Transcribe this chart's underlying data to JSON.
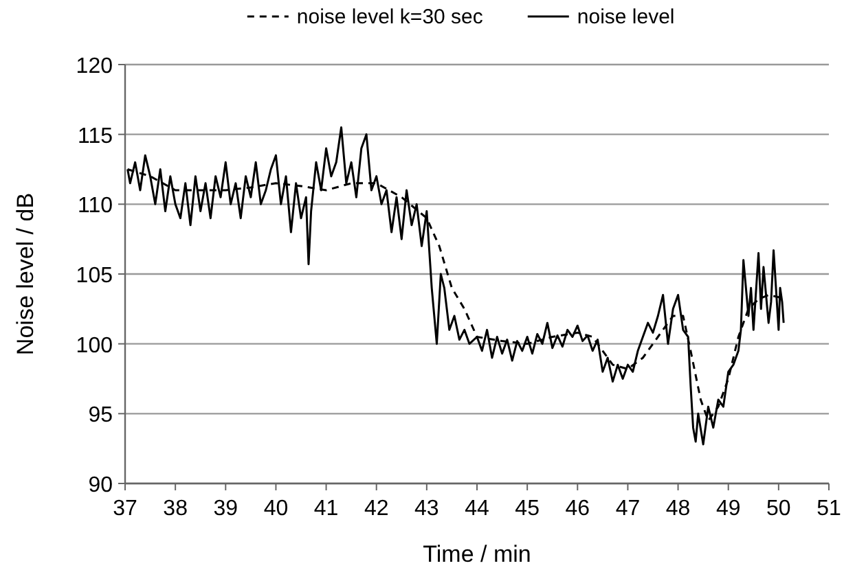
{
  "chart_data": {
    "type": "line",
    "xlabel": "Time / min",
    "ylabel": "Noise level / dB",
    "xlim": [
      37,
      51
    ],
    "xticks": [
      37,
      38,
      39,
      40,
      41,
      42,
      43,
      44,
      45,
      46,
      47,
      48,
      49,
      50,
      51
    ],
    "ylim": [
      90,
      120
    ],
    "yticks": [
      90,
      95,
      100,
      105,
      110,
      115,
      120
    ],
    "grid": "y",
    "legend": "top",
    "series": [
      {
        "name": "noise level k=30 sec",
        "color": "#000000",
        "line_style": "dashed",
        "x": [
          37.05,
          37.5,
          38,
          38.5,
          39,
          39.5,
          40,
          40.5,
          41,
          41.5,
          42,
          42.5,
          43,
          43.25,
          43.5,
          43.75,
          44,
          44.5,
          45,
          45.5,
          46,
          46.3,
          46.7,
          47,
          47.3,
          47.6,
          47.9,
          48.1,
          48.25,
          48.45,
          48.6,
          48.8,
          49,
          49.2,
          49.4,
          49.6,
          49.8,
          50.05
        ],
        "values": [
          112.5,
          112,
          111,
          111,
          111,
          111.2,
          111.5,
          111.3,
          111,
          111.5,
          111.5,
          110.5,
          109,
          107,
          104,
          102.5,
          100.5,
          100.2,
          100,
          100.5,
          100.8,
          100.5,
          98.5,
          98.2,
          99,
          100.5,
          102,
          102,
          99.5,
          96,
          94.5,
          95.5,
          97.5,
          100.5,
          102.5,
          103.2,
          103.5,
          103.3
        ]
      },
      {
        "name": "noise level",
        "color": "#000000",
        "line_style": "solid",
        "x": [
          37.05,
          37.1,
          37.2,
          37.3,
          37.4,
          37.5,
          37.6,
          37.7,
          37.8,
          37.9,
          38,
          38.1,
          38.2,
          38.3,
          38.4,
          38.5,
          38.6,
          38.7,
          38.8,
          38.9,
          39,
          39.1,
          39.2,
          39.3,
          39.4,
          39.5,
          39.6,
          39.7,
          39.8,
          39.9,
          40,
          40.1,
          40.2,
          40.3,
          40.4,
          40.5,
          40.6,
          40.65,
          40.7,
          40.8,
          40.9,
          41,
          41.1,
          41.2,
          41.3,
          41.4,
          41.5,
          41.6,
          41.7,
          41.8,
          41.9,
          42,
          42.1,
          42.2,
          42.3,
          42.4,
          42.5,
          42.6,
          42.7,
          42.8,
          42.9,
          43,
          43.1,
          43.2,
          43.28,
          43.35,
          43.45,
          43.55,
          43.65,
          43.75,
          43.85,
          44,
          44.1,
          44.2,
          44.3,
          44.4,
          44.5,
          44.6,
          44.7,
          44.8,
          44.9,
          45,
          45.1,
          45.2,
          45.3,
          45.4,
          45.5,
          45.6,
          45.7,
          45.8,
          45.9,
          46,
          46.1,
          46.2,
          46.3,
          46.4,
          46.5,
          46.6,
          46.7,
          46.8,
          46.9,
          47,
          47.1,
          47.2,
          47.3,
          47.4,
          47.5,
          47.6,
          47.7,
          47.8,
          47.9,
          48,
          48.1,
          48.2,
          48.25,
          48.3,
          48.35,
          48.4,
          48.5,
          48.6,
          48.7,
          48.8,
          48.9,
          49,
          49.1,
          49.2,
          49.25,
          49.3,
          49.4,
          49.45,
          49.5,
          49.6,
          49.65,
          49.7,
          49.8,
          49.85,
          49.9,
          50,
          50.03,
          50.07,
          50.1
        ],
        "values": [
          112.5,
          111.5,
          113,
          111,
          113.5,
          112,
          110,
          112.5,
          109.5,
          112,
          110,
          109,
          111.5,
          108.5,
          112,
          109.5,
          111.5,
          109,
          112,
          110.5,
          113,
          110,
          111.5,
          109,
          112,
          110.5,
          113,
          110,
          111,
          112.5,
          113.5,
          110,
          112,
          108,
          111.5,
          109,
          110.5,
          105.7,
          109.5,
          113,
          111,
          114,
          112,
          113,
          115.5,
          111.5,
          113,
          110.5,
          114,
          115,
          111,
          112,
          110,
          111,
          108,
          110.5,
          107.5,
          111,
          108.5,
          110,
          107,
          109.5,
          104,
          100,
          105,
          104,
          101,
          102,
          100.3,
          101,
          100,
          100.5,
          99.5,
          101,
          99,
          100.5,
          99.3,
          100.3,
          98.8,
          100.2,
          99.5,
          100.5,
          99.3,
          100.7,
          100,
          101.5,
          99.7,
          100.6,
          99.8,
          101,
          100.5,
          101.3,
          100.2,
          100.6,
          99.5,
          100.3,
          98,
          99,
          97.3,
          98.5,
          97.5,
          98.5,
          98,
          99.5,
          100.5,
          101.5,
          100.8,
          102,
          103.5,
          100,
          102.5,
          103.5,
          101,
          100.5,
          97,
          94,
          93,
          95,
          92.8,
          95.5,
          94,
          96,
          95.5,
          98,
          98.5,
          99.5,
          101,
          106,
          102,
          104,
          101,
          106.5,
          102.5,
          105.5,
          101.5,
          103,
          106.7,
          101,
          104,
          103,
          101.5
        ]
      }
    ]
  }
}
